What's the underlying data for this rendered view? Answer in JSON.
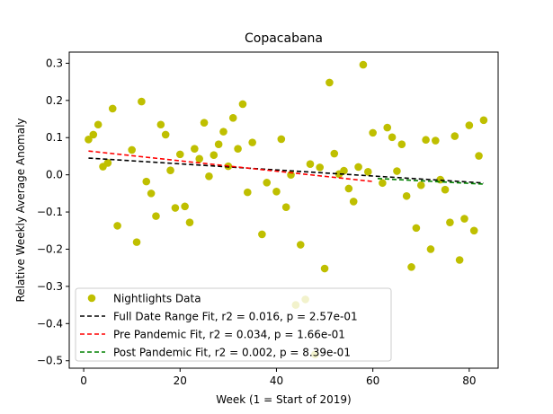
{
  "chart_data": {
    "type": "scatter",
    "title": "Copacabana",
    "xlabel": "Week (1 = Start of 2019)",
    "ylabel": "Relative Weekly Average Anomaly",
    "xlim": [
      -3,
      86
    ],
    "ylim": [
      -0.52,
      0.33
    ],
    "xticks": [
      0,
      20,
      40,
      60,
      80
    ],
    "xtick_labels": [
      "0",
      "20",
      "40",
      "60",
      "80"
    ],
    "yticks": [
      0.3,
      0.2,
      0.1,
      0.0,
      -0.1,
      -0.2,
      -0.3,
      -0.4,
      -0.5
    ],
    "ytick_labels": [
      "0.3",
      "0.2",
      "0.1",
      "0.0",
      "−0.1",
      "−0.2",
      "−0.3",
      "−0.4",
      "−0.5"
    ],
    "grid": false,
    "legend_position": "lower-left",
    "colors": {
      "points": "#bfbf00",
      "full_fit": "#000000",
      "pre_fit": "#ff0000",
      "post_fit": "#008000"
    },
    "series": [
      {
        "name": "Nightlights Data",
        "kind": "scatter",
        "x": [
          1,
          2,
          3,
          4,
          5,
          6,
          7,
          10,
          11,
          12,
          13,
          14,
          15,
          16,
          17,
          18,
          19,
          20,
          21,
          22,
          23,
          24,
          25,
          26,
          27,
          28,
          29,
          30,
          31,
          32,
          33,
          34,
          35,
          37,
          38,
          40,
          41,
          42,
          43,
          44,
          45,
          46,
          47,
          48,
          49,
          50,
          51,
          52,
          53,
          54,
          55,
          56,
          57,
          58,
          59,
          60,
          62,
          63,
          64,
          65,
          66,
          67,
          68,
          69,
          70,
          71,
          72,
          73,
          74,
          75,
          76,
          77,
          78,
          79,
          80,
          81,
          82,
          83
        ],
        "y": [
          0.095,
          0.108,
          0.135,
          0.022,
          0.032,
          0.178,
          -0.137,
          0.067,
          -0.181,
          0.197,
          -0.018,
          -0.05,
          -0.111,
          0.135,
          0.108,
          0.012,
          -0.089,
          0.055,
          -0.085,
          -0.128,
          0.07,
          0.043,
          0.14,
          -0.004,
          0.053,
          0.082,
          0.116,
          0.023,
          0.153,
          0.07,
          0.19,
          -0.047,
          0.087,
          -0.16,
          -0.021,
          -0.045,
          0.096,
          -0.087,
          0.0,
          -0.35,
          -0.188,
          -0.335,
          0.029,
          -0.483,
          0.02,
          -0.252,
          0.248,
          0.057,
          0.002,
          0.011,
          -0.037,
          -0.072,
          0.021,
          0.296,
          0.008,
          0.113,
          -0.022,
          0.127,
          0.101,
          0.01,
          0.082,
          -0.057,
          -0.248,
          -0.143,
          -0.028,
          0.094,
          -0.2,
          0.092,
          -0.013,
          -0.04,
          -0.128,
          0.104,
          -0.229,
          -0.118,
          0.133,
          -0.15,
          0.051,
          0.147
        ]
      },
      {
        "name": "Full Date Range Fit, r2 = 0.016, p = 2.57e-01",
        "kind": "line",
        "style": "dashed",
        "x": [
          1,
          83
        ],
        "y": [
          0.045,
          -0.022
        ]
      },
      {
        "name": "Pre Pandemic Fit, r2 = 0.034, p = 1.66e-01",
        "kind": "line",
        "style": "dashed",
        "x": [
          1,
          60
        ],
        "y": [
          0.064,
          -0.018
        ]
      },
      {
        "name": "Post Pandemic Fit, r2 = 0.002, p = 8.39e-01",
        "kind": "line",
        "style": "dashed",
        "x": [
          61,
          83
        ],
        "y": [
          -0.01,
          -0.025
        ]
      }
    ]
  }
}
